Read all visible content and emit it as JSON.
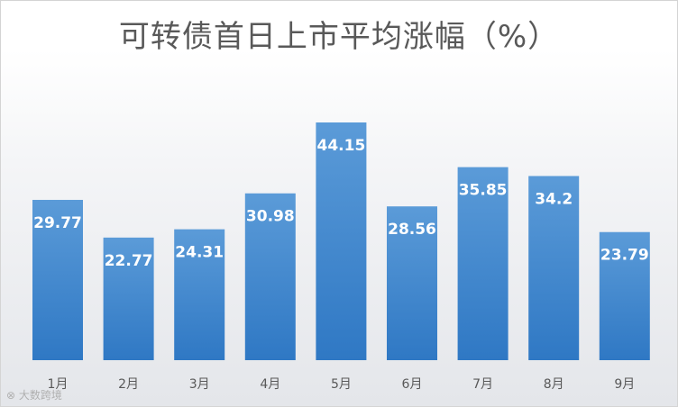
{
  "chart_data": {
    "type": "bar",
    "title": "可转债首日上市平均涨幅（%）",
    "categories": [
      "1月",
      "2月",
      "3月",
      "4月",
      "5月",
      "6月",
      "7月",
      "8月",
      "9月"
    ],
    "values": [
      29.77,
      22.77,
      24.31,
      30.98,
      44.15,
      28.56,
      35.85,
      34.2,
      23.79
    ],
    "value_labels": [
      "29.77",
      "22.77",
      "24.31",
      "30.98",
      "44.15",
      "28.56",
      "35.85",
      "34.2",
      "23.79"
    ],
    "xlabel": "",
    "ylabel": "",
    "ylim": [
      0,
      50
    ],
    "grid": false,
    "legend": "none",
    "bar_color": "#3f86cf"
  },
  "watermark": "大数跨境"
}
